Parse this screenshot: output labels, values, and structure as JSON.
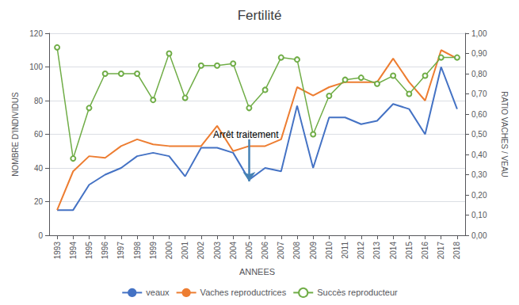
{
  "chart_data": {
    "type": "line",
    "title": "Fertilité",
    "x_label": "ANNEES",
    "y_label": "NOMBRE D'INDIVIDUS",
    "y2_label": "RATIO VACHES / VEAU",
    "x": [
      1993,
      1994,
      1995,
      1996,
      1997,
      1998,
      1999,
      2000,
      2001,
      2002,
      2003,
      2004,
      2005,
      2006,
      2007,
      2008,
      2009,
      2010,
      2011,
      2012,
      2013,
      2014,
      2015,
      2016,
      2017,
      2018
    ],
    "xlim": [
      1992.5,
      2018.5
    ],
    "xticks": [
      1993,
      1994,
      1995,
      1996,
      1997,
      1998,
      1999,
      2000,
      2001,
      2002,
      2003,
      2004,
      2005,
      2006,
      2007,
      2008,
      2009,
      2010,
      2011,
      2012,
      2013,
      2014,
      2015,
      2016,
      2017,
      2018
    ],
    "ylim": [
      0,
      120
    ],
    "yticks": [
      0,
      20,
      40,
      60,
      80,
      100,
      120
    ],
    "y2lim": [
      0.0,
      1.0
    ],
    "y2ticks": [
      {
        "value": 0.0,
        "label": "0,00"
      },
      {
        "value": 0.1,
        "label": "0,10"
      },
      {
        "value": 0.2,
        "label": "0,20"
      },
      {
        "value": 0.3,
        "label": "0,30"
      },
      {
        "value": 0.4,
        "label": "0,40"
      },
      {
        "value": 0.5,
        "label": "0,50"
      },
      {
        "value": 0.6,
        "label": "0,60"
      },
      {
        "value": 0.7,
        "label": "0,70"
      },
      {
        "value": 0.8,
        "label": "0,80"
      },
      {
        "value": 0.9,
        "label": "0,90"
      },
      {
        "value": 1.0,
        "label": "1,00"
      }
    ],
    "grid": true,
    "legend": "bottom",
    "series": [
      {
        "name": "veaux",
        "color": "#4472C4",
        "values": [
          15,
          15,
          30,
          36,
          40,
          47,
          49,
          47,
          35,
          52,
          52,
          49,
          33,
          40,
          38,
          77,
          40,
          70,
          70,
          66,
          68,
          78,
          75,
          60,
          100,
          75
        ]
      },
      {
        "name": "Vaches reproductrices",
        "color": "#ED7D31",
        "values": [
          15,
          38,
          47,
          46,
          53,
          57,
          54,
          53,
          53,
          53,
          65,
          50,
          53,
          53,
          57,
          88,
          83,
          88,
          91,
          91,
          91,
          105,
          91,
          80,
          110,
          105
        ]
      },
      {
        "name": "Succès reproducteur",
        "color": "#70AD47",
        "axis": "y2",
        "marker": "circle",
        "values": [
          0.93,
          0.38,
          0.63,
          0.8,
          0.8,
          0.8,
          0.67,
          0.9,
          0.68,
          0.84,
          0.84,
          0.85,
          0.63,
          0.72,
          0.88,
          0.87,
          0.5,
          0.69,
          0.77,
          0.78,
          0.75,
          0.79,
          0.7,
          0.79,
          0.88,
          0.88
        ]
      }
    ],
    "annotations": [
      {
        "text": "Arrêt traitement",
        "x": 2002.5,
        "y": 60,
        "arrow_x": 2005,
        "arrow_y_start": 57,
        "arrow_y_end": 32
      }
    ]
  }
}
